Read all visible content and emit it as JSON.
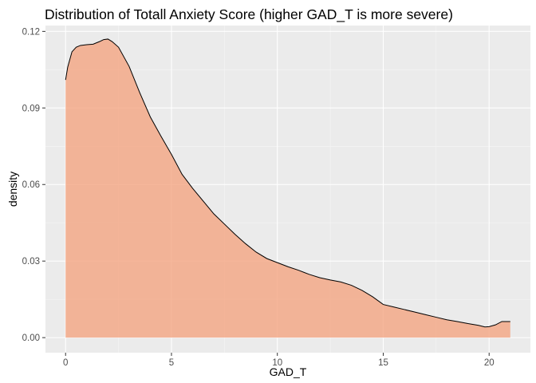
{
  "chart_data": {
    "type": "area",
    "title": "Distribution of Totall Anxiety Score (higher GAD_T is more severe)",
    "xlabel": "GAD_T",
    "ylabel": "density",
    "xlim": [
      -0.95,
      21.95
    ],
    "ylim": [
      -0.0059,
      0.1223
    ],
    "x_ticks": [
      0,
      5,
      10,
      15,
      20
    ],
    "x_tick_labels": [
      "0",
      "5",
      "10",
      "15",
      "20"
    ],
    "y_ticks": [
      0.0,
      0.03,
      0.06,
      0.09,
      0.12
    ],
    "y_tick_labels": [
      "0.00",
      "0.03",
      "0.06",
      "0.09",
      "0.12"
    ],
    "grid": true,
    "legend": "none",
    "fill_color": "#f4a582",
    "fill_opacity": 0.8,
    "line_color": "#000000",
    "panel_background": "#ebebeb",
    "grid_major_color": "#ffffff",
    "series": [
      {
        "x": [
          0,
          0.1,
          0.3,
          0.5,
          0.7,
          1.0,
          1.3,
          1.6,
          1.8,
          2.0,
          2.2,
          2.5,
          3.0,
          3.5,
          4.0,
          4.5,
          5.0,
          5.5,
          6.0,
          6.5,
          7.0,
          7.5,
          8.0,
          8.5,
          9.0,
          9.5,
          10.0,
          10.5,
          11.0,
          11.5,
          12.0,
          12.5,
          13.0,
          13.5,
          14.0,
          14.5,
          15.0,
          15.5,
          16.0,
          16.5,
          17.0,
          17.5,
          18.0,
          18.5,
          19.0,
          19.5,
          19.8,
          20.0,
          20.3,
          20.6,
          21.0
        ],
        "y": [
          0.101,
          0.106,
          0.112,
          0.1138,
          0.1145,
          0.1148,
          0.115,
          0.116,
          0.1168,
          0.117,
          0.116,
          0.1138,
          0.1063,
          0.096,
          0.0865,
          0.079,
          0.0718,
          0.064,
          0.0585,
          0.0535,
          0.0485,
          0.0445,
          0.0405,
          0.0368,
          0.0335,
          0.031,
          0.0294,
          0.0278,
          0.0264,
          0.0248,
          0.0235,
          0.0226,
          0.0218,
          0.0205,
          0.0185,
          0.016,
          0.013,
          0.012,
          0.011,
          0.01,
          0.009,
          0.008,
          0.007,
          0.0063,
          0.0055,
          0.0048,
          0.0042,
          0.0043,
          0.005,
          0.0063,
          0.0063
        ]
      }
    ]
  }
}
